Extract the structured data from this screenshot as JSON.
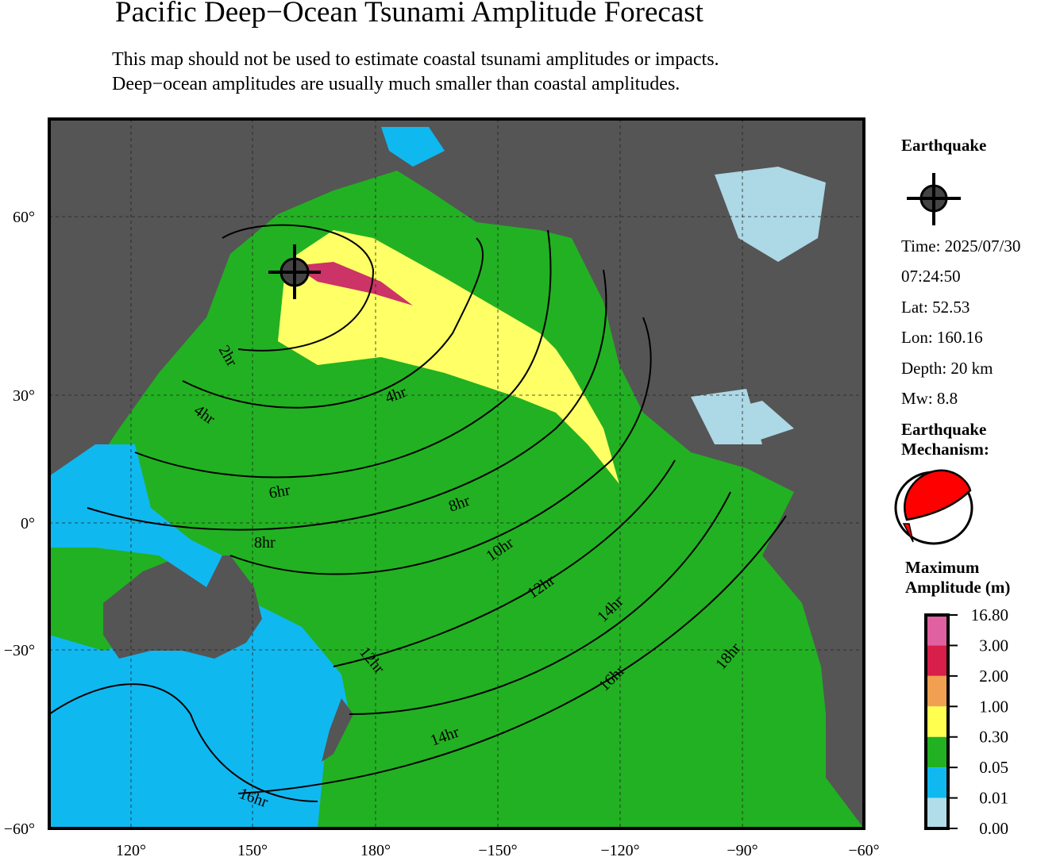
{
  "title": "Pacific Deep−Ocean Tsunami Amplitude Forecast",
  "subtitle_lines": [
    "This map should not be used to estimate coastal tsunami amplitudes or impacts.",
    "Deep−ocean amplitudes are usually much smaller than coastal amplitudes."
  ],
  "map": {
    "lon_ticks": [
      "120°",
      "150°",
      "180°",
      "−150°",
      "−120°",
      "−90°",
      "−60°"
    ],
    "lat_ticks": [
      "60°",
      "30°",
      "0°",
      "−30°",
      "−60°"
    ],
    "contour_labels": [
      "2hr",
      "4hr",
      "4hr",
      "6hr",
      "8hr",
      "8hr",
      "10hr",
      "12hr",
      "12hr",
      "14hr",
      "14hr",
      "16hr",
      "16hr",
      "18hr"
    ],
    "colors": {
      "land": "#555555",
      "deep_ocean": "#22b14c",
      "shallow": "#00bfff",
      "yellow": "#ffff66",
      "red": "#cc0033",
      "lakes": "#add8e6"
    }
  },
  "legend": {
    "earthquake_heading": "Earthquake",
    "epicenter_icon": "crosshair-circle",
    "time": "Time: 2025/07/30",
    "clock": "07:24:50",
    "lat": "Lat: 52.53",
    "lon": "Lon: 160.16",
    "depth": "Depth: 20 km",
    "mw": "Mw: 8.8",
    "mechanism_heading_1": "Earthquake",
    "mechanism_heading_2": "Mechanism:",
    "amp_heading_1": "Maximum",
    "amp_heading_2": "Amplitude (m)",
    "scale": [
      {
        "label": "16.80",
        "color": "#e060a0"
      },
      {
        "label": "3.00",
        "color": "#d81e4a"
      },
      {
        "label": "2.00",
        "color": "#f0a050"
      },
      {
        "label": "1.00",
        "color": "#ffff50"
      },
      {
        "label": "0.30",
        "color": "#22b122"
      },
      {
        "label": "0.05",
        "color": "#10b8f0"
      },
      {
        "label": "0.01",
        "color": "#b0dde8"
      },
      {
        "label": "0.00",
        "color": null
      }
    ]
  }
}
